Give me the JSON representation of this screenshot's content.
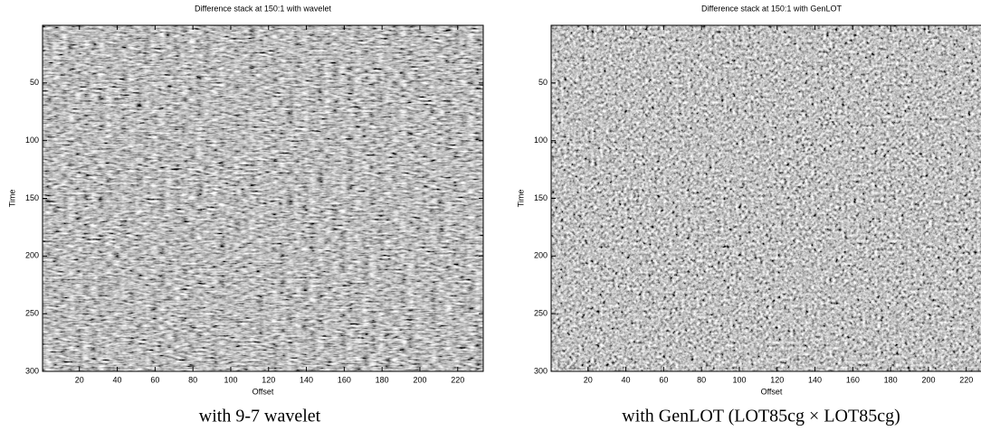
{
  "chart_data": [
    {
      "type": "image",
      "title": "Difference stack at 150:1 with wavelet",
      "xlabel": "Offset",
      "ylabel": "Time",
      "xlim": [
        0.5,
        233.5
      ],
      "ylim": [
        0,
        300
      ],
      "y_reversed": true,
      "xticks": [
        20,
        40,
        60,
        80,
        100,
        120,
        140,
        160,
        180,
        200,
        220
      ],
      "yticks": [
        50,
        100,
        150,
        200,
        250,
        300
      ],
      "caption": "with 9-7 wavelet"
    },
    {
      "type": "image",
      "title": "Difference stack at 150:1 with GenLOT",
      "xlabel": "Offset",
      "ylabel": "Time",
      "xlim": [
        0.5,
        233.5
      ],
      "ylim": [
        0,
        300
      ],
      "y_reversed": true,
      "xticks": [
        20,
        40,
        60,
        80,
        100,
        120,
        140,
        160,
        180,
        200,
        220
      ],
      "yticks": [
        50,
        100,
        150,
        200,
        250,
        300
      ],
      "caption": "with GenLOT (LOT85cg × LOT85cg)"
    }
  ]
}
